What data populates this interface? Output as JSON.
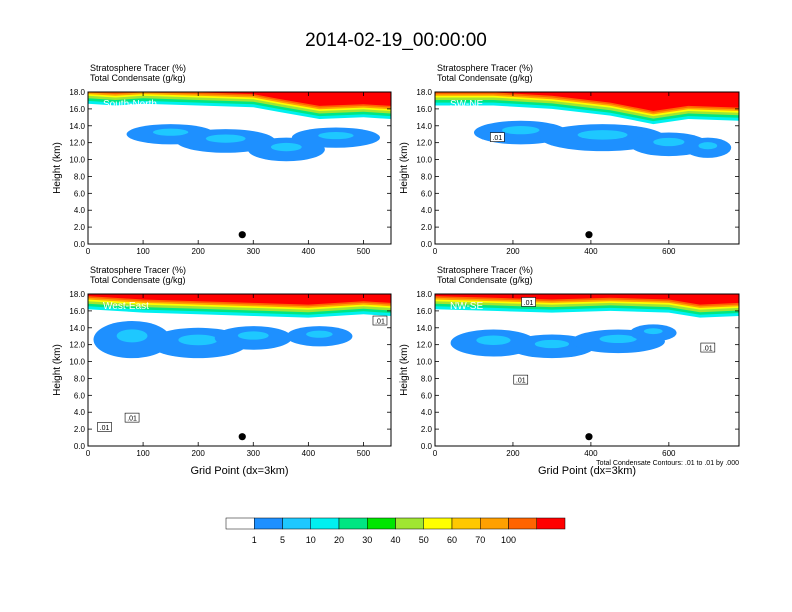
{
  "title": "2014-02-19_00:00:00",
  "chart_data": {
    "type": "heatmap",
    "title": "2014-02-19_00:00:00",
    "colorbar": {
      "labels": [
        "1",
        "5",
        "10",
        "20",
        "30",
        "40",
        "50",
        "60",
        "70",
        "100"
      ],
      "colors": [
        "#ffffff",
        "#1e90ff",
        "#1ec8ff",
        "#00f0f0",
        "#00e682",
        "#00e600",
        "#a0e632",
        "#ffff00",
        "#ffc800",
        "#ffa000",
        "#ff6400",
        "#ff0000"
      ]
    },
    "footnote": "Total Condensate Contours: .01 to .01 by .000",
    "panels": [
      {
        "name": "South-North",
        "title_line1": "Stratosphere Tracer   (%)",
        "title_line2": "Total Condensate   (g/kg)",
        "ylabel": "Height (km)",
        "xlabel": "",
        "xlim": [
          0,
          550
        ],
        "ylim": [
          0,
          18
        ],
        "xticks": [
          "0",
          "100",
          "200",
          "300",
          "400",
          "500"
        ],
        "xtick_values": [
          0,
          100,
          200,
          300,
          400,
          500
        ],
        "yticks": [
          "0.0",
          "2.0",
          "4.0",
          "6.0",
          "8.0",
          "10.0",
          "12.0",
          "14.0",
          "16.0",
          "18.0"
        ],
        "marker": {
          "x": 280,
          "y": 1.1
        },
        "contour_labels": [],
        "tracer_top": [
          [
            0,
            16.6
          ],
          [
            50,
            16.4
          ],
          [
            100,
            16.6
          ],
          [
            200,
            16.4
          ],
          [
            300,
            16.2
          ],
          [
            350,
            15.6
          ],
          [
            420,
            14.8
          ],
          [
            500,
            15.0
          ],
          [
            550,
            14.8
          ]
        ],
        "cloud_blobs": [
          [
            150,
            13.0,
            80,
            1.2
          ],
          [
            250,
            12.2,
            90,
            1.4
          ],
          [
            360,
            11.2,
            70,
            1.4
          ],
          [
            450,
            12.6,
            80,
            1.2
          ]
        ]
      },
      {
        "name": "SW-NE",
        "title_line1": "Stratosphere Tracer   (%)",
        "title_line2": "Total Condensate   (g/kg)",
        "ylabel": "Height (km)",
        "xlabel": "",
        "xlim": [
          0,
          780
        ],
        "ylim": [
          0,
          18
        ],
        "xticks": [
          "0",
          "200",
          "400",
          "600"
        ],
        "xtick_values": [
          0,
          200,
          400,
          600
        ],
        "yticks": [
          "0.0",
          "2.0",
          "4.0",
          "6.0",
          "8.0",
          "10.0",
          "12.0",
          "14.0",
          "16.0",
          "18.0"
        ],
        "marker": {
          "x": 395,
          "y": 1.1
        },
        "contour_labels": [
          {
            "text": ".01",
            "x": 160,
            "y": 12.6
          }
        ],
        "tracer_top": [
          [
            0,
            16.4
          ],
          [
            150,
            16.4
          ],
          [
            300,
            16.0
          ],
          [
            450,
            15.2
          ],
          [
            560,
            14.2
          ],
          [
            650,
            14.8
          ],
          [
            780,
            14.6
          ]
        ],
        "cloud_blobs": [
          [
            220,
            13.2,
            120,
            1.4
          ],
          [
            430,
            12.6,
            160,
            1.6
          ],
          [
            600,
            11.8,
            100,
            1.4
          ],
          [
            700,
            11.4,
            60,
            1.2
          ]
        ]
      },
      {
        "name": "West-East",
        "title_line1": "Stratosphere Tracer   (%)",
        "title_line2": "Total Condensate   (g/kg)",
        "ylabel": "Height (km)",
        "xlabel": "Grid Point (dx=3km)",
        "xlim": [
          0,
          550
        ],
        "ylim": [
          0,
          18
        ],
        "xticks": [
          "0",
          "100",
          "200",
          "300",
          "400",
          "500"
        ],
        "xtick_values": [
          0,
          100,
          200,
          300,
          400,
          500
        ],
        "yticks": [
          "0.0",
          "2.0",
          "4.0",
          "6.0",
          "8.0",
          "10.0",
          "12.0",
          "14.0",
          "16.0",
          "18.0"
        ],
        "marker": {
          "x": 280,
          "y": 1.1
        },
        "contour_labels": [
          {
            "text": ".01",
            "x": 530,
            "y": 14.8
          },
          {
            "text": ".01",
            "x": 80,
            "y": 3.3
          },
          {
            "text": ".01",
            "x": 30,
            "y": 2.2
          }
        ],
        "tracer_top": [
          [
            0,
            16.2
          ],
          [
            100,
            15.8
          ],
          [
            200,
            15.6
          ],
          [
            300,
            15.4
          ],
          [
            400,
            15.2
          ],
          [
            500,
            15.6
          ],
          [
            550,
            15.4
          ]
        ],
        "cloud_blobs": [
          [
            80,
            12.6,
            70,
            2.2
          ],
          [
            200,
            12.2,
            90,
            1.8
          ],
          [
            300,
            12.8,
            70,
            1.4
          ],
          [
            420,
            13.0,
            60,
            1.2
          ]
        ]
      },
      {
        "name": "NW-SE",
        "title_line1": "Stratosphere Tracer   (%)",
        "title_line2": "Total Condensate   (g/kg)",
        "ylabel": "Height (km)",
        "xlabel": "Grid Point (dx=3km)",
        "xlim": [
          0,
          780
        ],
        "ylim": [
          0,
          18
        ],
        "xticks": [
          "0",
          "200",
          "400",
          "600"
        ],
        "xtick_values": [
          0,
          200,
          400,
          600
        ],
        "yticks": [
          "0.0",
          "2.0",
          "4.0",
          "6.0",
          "8.0",
          "10.0",
          "12.0",
          "14.0",
          "16.0",
          "18.0"
        ],
        "marker": {
          "x": 395,
          "y": 1.1
        },
        "contour_labels": [
          {
            "text": ".01",
            "x": 240,
            "y": 17.0
          },
          {
            "text": ".01",
            "x": 700,
            "y": 11.6
          },
          {
            "text": ".01",
            "x": 220,
            "y": 7.8
          }
        ],
        "tracer_top": [
          [
            0,
            16.2
          ],
          [
            150,
            16.0
          ],
          [
            300,
            15.8
          ],
          [
            450,
            16.0
          ],
          [
            600,
            15.8
          ],
          [
            680,
            15.2
          ],
          [
            780,
            15.4
          ]
        ],
        "cloud_blobs": [
          [
            150,
            12.2,
            110,
            1.6
          ],
          [
            300,
            11.8,
            110,
            1.4
          ],
          [
            470,
            12.4,
            120,
            1.4
          ],
          [
            560,
            13.4,
            60,
            1.0
          ]
        ]
      }
    ]
  }
}
